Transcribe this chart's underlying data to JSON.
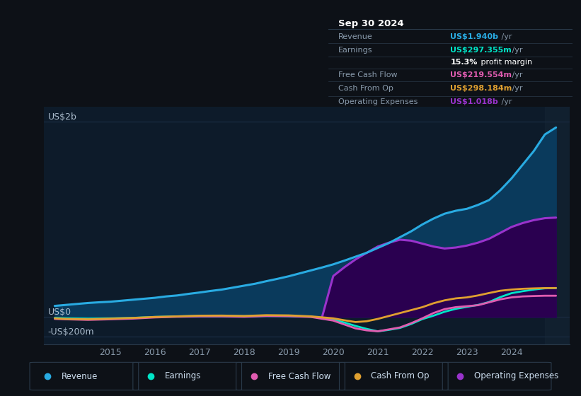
{
  "bg_color": "#0d1117",
  "chart_bg": "#0d1b2a",
  "ylabel_us2b": "US$2b",
  "ylabel_us0": "US$0",
  "ylabel_neg200m": "-US$200m",
  "x_ticks": [
    2015,
    2016,
    2017,
    2018,
    2019,
    2020,
    2021,
    2022,
    2023,
    2024
  ],
  "xlim": [
    2013.5,
    2025.3
  ],
  "ylim": [
    -280,
    2150
  ],
  "legend_items": [
    {
      "label": "Revenue",
      "color": "#29abe2"
    },
    {
      "label": "Earnings",
      "color": "#00e6c8"
    },
    {
      "label": "Free Cash Flow",
      "color": "#e05cb0"
    },
    {
      "label": "Cash From Op",
      "color": "#e0a030"
    },
    {
      "label": "Operating Expenses",
      "color": "#9933cc"
    }
  ],
  "info_box": {
    "title": "Sep 30 2024",
    "rows": [
      {
        "label": "Revenue",
        "value": "US$1.940b",
        "suffix": " /yr",
        "value_color": "#29abe2"
      },
      {
        "label": "Earnings",
        "value": "US$297.355m",
        "suffix": " /yr",
        "value_color": "#00e6c8"
      },
      {
        "label": "",
        "bold": "15.3%",
        "rest": " profit margin",
        "value_color": "#ffffff"
      },
      {
        "label": "Free Cash Flow",
        "value": "US$219.554m",
        "suffix": " /yr",
        "value_color": "#e05cb0"
      },
      {
        "label": "Cash From Op",
        "value": "US$298.184m",
        "suffix": " /yr",
        "value_color": "#e0a030"
      },
      {
        "label": "Operating Expenses",
        "value": "US$1.018b",
        "suffix": " /yr",
        "value_color": "#9933cc"
      }
    ]
  },
  "revenue": {
    "years": [
      2013.75,
      2014.0,
      2014.25,
      2014.5,
      2014.75,
      2015.0,
      2015.25,
      2015.5,
      2015.75,
      2016.0,
      2016.25,
      2016.5,
      2016.75,
      2017.0,
      2017.25,
      2017.5,
      2017.75,
      2018.0,
      2018.25,
      2018.5,
      2018.75,
      2019.0,
      2019.25,
      2019.5,
      2019.75,
      2020.0,
      2020.25,
      2020.5,
      2020.75,
      2021.0,
      2021.25,
      2021.5,
      2021.75,
      2022.0,
      2022.25,
      2022.5,
      2022.75,
      2023.0,
      2023.25,
      2023.5,
      2023.75,
      2024.0,
      2024.25,
      2024.5,
      2024.75,
      2025.0
    ],
    "values": [
      115,
      125,
      135,
      145,
      152,
      158,
      168,
      178,
      188,
      198,
      212,
      222,
      238,
      252,
      268,
      282,
      302,
      322,
      342,
      368,
      392,
      418,
      448,
      478,
      508,
      540,
      578,
      618,
      658,
      708,
      758,
      818,
      878,
      948,
      1008,
      1058,
      1088,
      1108,
      1148,
      1198,
      1298,
      1418,
      1558,
      1698,
      1868,
      1940
    ],
    "color": "#29abe2",
    "fill_color": "#0a3a5c",
    "linewidth": 2.2
  },
  "earnings": {
    "years": [
      2013.75,
      2014.0,
      2014.5,
      2015.0,
      2015.5,
      2016.0,
      2016.5,
      2017.0,
      2017.5,
      2018.0,
      2018.5,
      2019.0,
      2019.5,
      2020.0,
      2020.25,
      2020.5,
      2020.75,
      2021.0,
      2021.25,
      2021.5,
      2021.75,
      2022.0,
      2022.25,
      2022.5,
      2022.75,
      2023.0,
      2023.25,
      2023.5,
      2023.75,
      2024.0,
      2024.25,
      2024.5,
      2024.75,
      2025.0
    ],
    "values": [
      -8,
      -12,
      -15,
      -12,
      -8,
      2,
      8,
      12,
      12,
      10,
      15,
      12,
      5,
      -25,
      -55,
      -90,
      -120,
      -145,
      -130,
      -110,
      -70,
      -20,
      15,
      55,
      85,
      105,
      125,
      155,
      205,
      245,
      265,
      282,
      295,
      297
    ],
    "color": "#00e6c8",
    "linewidth": 2.0
  },
  "free_cash_flow": {
    "years": [
      2013.75,
      2014.0,
      2014.5,
      2015.0,
      2015.5,
      2016.0,
      2016.5,
      2017.0,
      2017.5,
      2018.0,
      2018.5,
      2019.0,
      2019.5,
      2020.0,
      2020.25,
      2020.5,
      2020.75,
      2021.0,
      2021.25,
      2021.5,
      2021.75,
      2022.0,
      2022.25,
      2022.5,
      2022.75,
      2023.0,
      2023.25,
      2023.5,
      2023.75,
      2024.0,
      2024.25,
      2024.5,
      2024.75,
      2025.0
    ],
    "values": [
      -18,
      -22,
      -28,
      -22,
      -15,
      -3,
      4,
      8,
      8,
      4,
      12,
      10,
      2,
      -35,
      -75,
      -115,
      -135,
      -145,
      -125,
      -105,
      -62,
      -12,
      42,
      82,
      102,
      112,
      122,
      152,
      182,
      202,
      212,
      216,
      219,
      219
    ],
    "color": "#e05cb0",
    "linewidth": 2.0
  },
  "cash_from_op": {
    "years": [
      2013.75,
      2014.0,
      2014.5,
      2015.0,
      2015.5,
      2016.0,
      2016.5,
      2017.0,
      2017.5,
      2018.0,
      2018.5,
      2019.0,
      2019.5,
      2020.0,
      2020.25,
      2020.5,
      2020.75,
      2021.0,
      2021.25,
      2021.5,
      2021.75,
      2022.0,
      2022.25,
      2022.5,
      2022.75,
      2023.0,
      2023.25,
      2023.5,
      2023.75,
      2024.0,
      2024.25,
      2024.5,
      2024.75,
      2025.0
    ],
    "values": [
      -12,
      -18,
      -22,
      -15,
      -8,
      2,
      8,
      15,
      16,
      12,
      20,
      18,
      8,
      -12,
      -32,
      -50,
      -42,
      -18,
      12,
      42,
      72,
      102,
      142,
      172,
      192,
      202,
      222,
      247,
      270,
      282,
      290,
      294,
      297,
      298
    ],
    "color": "#e0a030",
    "linewidth": 2.0
  },
  "op_expenses": {
    "years": [
      2019.75,
      2020.0,
      2020.25,
      2020.5,
      2020.75,
      2021.0,
      2021.25,
      2021.5,
      2021.75,
      2022.0,
      2022.25,
      2022.5,
      2022.75,
      2023.0,
      2023.25,
      2023.5,
      2023.75,
      2024.0,
      2024.25,
      2024.5,
      2024.75,
      2025.0
    ],
    "values": [
      0,
      420,
      510,
      590,
      658,
      722,
      762,
      792,
      782,
      752,
      722,
      702,
      712,
      732,
      762,
      802,
      862,
      922,
      962,
      992,
      1012,
      1018
    ],
    "color": "#9933cc",
    "fill_color": "#2a0050",
    "linewidth": 2.2
  },
  "forecast_start": 2024.75,
  "forecast_shade_color": "#1a2a3a"
}
